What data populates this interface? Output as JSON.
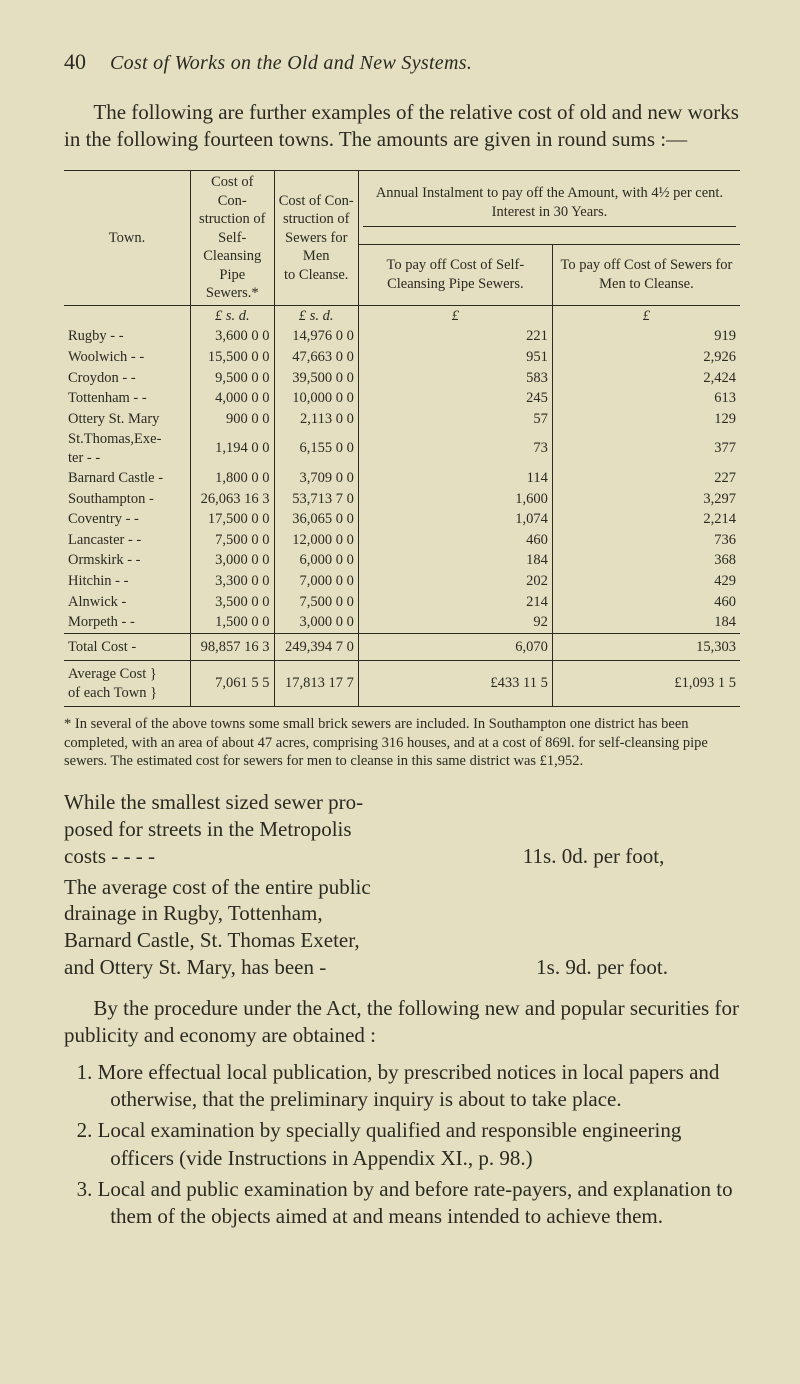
{
  "page_number": "40",
  "running_title": "Cost of Works on the Old and New Systems.",
  "intro": "The following are further examples of the relative cost of old and new works in the following fourteen towns. The amounts are given in round sums :—",
  "table": {
    "head": {
      "town": "Town.",
      "cost_con": "Cost of Con-\nstruction of\nSelf-Cleansing\nPipe Sewers.*",
      "cost_men": "Cost of Con-\nstruction of\nSewers for Men\nto Cleanse.",
      "annual_top": "Annual Instalment to pay off the Amount, with 4½ per cent. Interest in 30 Years.",
      "annual_a": "To pay off Cost of Self-Cleansing Pipe Sewers.",
      "annual_b": "To pay off Cost of Sewers for Men to Cleanse."
    },
    "units": {
      "c1": "£   s.  d.",
      "c2": "£   s.  d.",
      "c3": "£",
      "c4": "£"
    },
    "rows": [
      {
        "town": "Rugby   -    -",
        "c1": "3,600  0  0",
        "c2": "14,976  0  0",
        "c3": "221",
        "c4": "919"
      },
      {
        "town": "Woolwich -   -",
        "c1": "15,500  0  0",
        "c2": "47,663  0  0",
        "c3": "951",
        "c4": "2,926"
      },
      {
        "town": "Croydon -    -",
        "c1": "9,500  0  0",
        "c2": "39,500  0  0",
        "c3": "583",
        "c4": "2,424"
      },
      {
        "town": "Tottenham  - -",
        "c1": "4,000  0  0",
        "c2": "10,000  0  0",
        "c3": "245",
        "c4": "613"
      },
      {
        "town": "Ottery St. Mary",
        "c1": "900  0  0",
        "c2": "2,113  0  0",
        "c3": "57",
        "c4": "129"
      },
      {
        "town": "St.Thomas,Exe-\n  ter    -    -",
        "c1": "1,194  0  0",
        "c2": "6,155  0  0",
        "c3": "73",
        "c4": "377"
      },
      {
        "town": "Barnard Castle -",
        "c1": "1,800  0  0",
        "c2": "3,709  0  0",
        "c3": "114",
        "c4": "227"
      },
      {
        "town": "Southampton  -",
        "c1": "26,063 16  3",
        "c2": "53,713  7  0",
        "c3": "1,600",
        "c4": "3,297"
      },
      {
        "town": "Coventry -   -",
        "c1": "17,500  0  0",
        "c2": "36,065  0  0",
        "c3": "1,074",
        "c4": "2,214"
      },
      {
        "town": "Lancaster -  -",
        "c1": "7,500  0  0",
        "c2": "12,000  0  0",
        "c3": "460",
        "c4": "736"
      },
      {
        "town": "Ormskirk -   -",
        "c1": "3,000  0  0",
        "c2": "6,000  0  0",
        "c3": "184",
        "c4": "368"
      },
      {
        "town": "Hitchin  -   -",
        "c1": "3,300  0  0",
        "c2": "7,000  0  0",
        "c3": "202",
        "c4": "429"
      },
      {
        "town": "Alnwick      -",
        "c1": "3,500  0  0",
        "c2": "7,500  0  0",
        "c3": "214",
        "c4": "460"
      },
      {
        "town": "Morpeth  -   -",
        "c1": "1,500  0  0",
        "c2": "3,000  0  0",
        "c3": "92",
        "c4": "184"
      }
    ],
    "totals": [
      {
        "town": "Total Cost    -",
        "c1": "98,857 16  3",
        "c2": "249,394  7  0",
        "c3": "6,070",
        "c4": "15,303"
      },
      {
        "town": "Average  Cost }\n of each  Town }",
        "c1": "7,061  5  5",
        "c2": "17,813 17  7",
        "c3": "£433 11  5",
        "c4": "£1,093  1  5"
      }
    ]
  },
  "footnote": "* In several of the above towns some small brick sewers are included. In Southampton one district has been completed, with an area of about 47 acres, comprising 316 houses, and at a cost of 869l. for self-cleansing pipe sewers. The estimated cost for sewers for men to cleanse in this same district was £1,952.",
  "block1": {
    "lead": "While the smallest sized sewer pro-\nposed for streets in the Metropolis\ncosts        -            -            -   -",
    "price": "11s. 0d. per foot,"
  },
  "block2": {
    "lead": "The average cost of the entire public\ndrainage in Rugby, Tottenham,\nBarnard Castle, St. Thomas Exeter,\nand Ottery St. Mary, has been    -",
    "price": "1s. 9d. per foot."
  },
  "prepara": "By the procedure under the Act, the following new and popular securities for publicity and economy are obtained :",
  "enum": [
    "1. More effectual local publication, by prescribed notices in local papers and otherwise, that the preliminary inquiry is about to take place.",
    "2. Local examination by specially qualified and responsible engineering officers (vide Instructions in Appendix XI., p. 98.)",
    "3. Local and public examination by and before rate-payers, and explanation to them of the objects aimed at and means intended to achieve them."
  ]
}
